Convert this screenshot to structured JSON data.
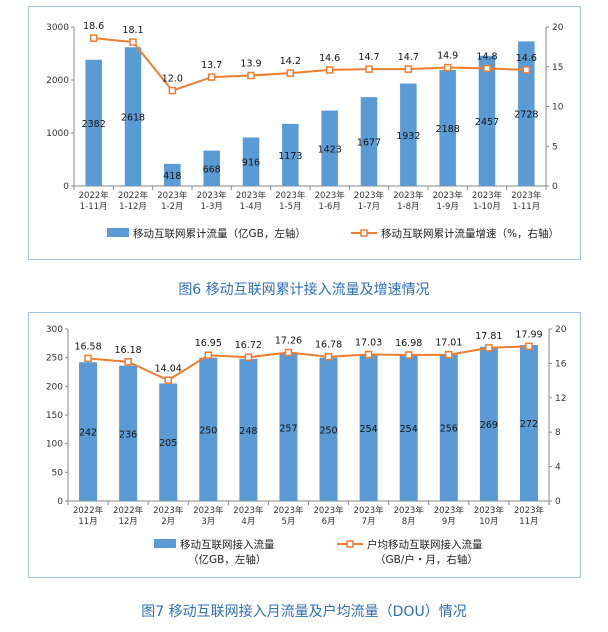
{
  "chart_data": [
    {
      "type": "bar",
      "categories": [
        [
          "2022年",
          "1-11月"
        ],
        [
          "2022年",
          "1-12月"
        ],
        [
          "2023年",
          "1-2月"
        ],
        [
          "2023年",
          "1-3月"
        ],
        [
          "2023年",
          "1-4月"
        ],
        [
          "2023年",
          "1-5月"
        ],
        [
          "2023年",
          "1-6月"
        ],
        [
          "2023年",
          "1-7月"
        ],
        [
          "2023年",
          "1-8月"
        ],
        [
          "2023年",
          "1-9月"
        ],
        [
          "2023年",
          "1-10月"
        ],
        [
          "2023年",
          "1-11月"
        ]
      ],
      "series": [
        {
          "name": "移动互联网累计流量（亿GB，左轴）",
          "kind": "bar",
          "axis": "left",
          "values": [
            2382,
            2618,
            418,
            668,
            916,
            1173,
            1423,
            1677,
            1932,
            2188,
            2457,
            2728
          ]
        },
        {
          "name": "移动互联网累计流量增速（%，右轴）",
          "kind": "line",
          "axis": "right",
          "values": [
            18.6,
            18.1,
            12.0,
            13.7,
            13.9,
            14.2,
            14.6,
            14.7,
            14.7,
            14.9,
            14.8,
            14.6
          ],
          "labels": [
            "18.6",
            "18.1",
            "12.0",
            "13.7",
            "13.9",
            "14.2",
            "14.6",
            "14.7",
            "14.7",
            "14.9",
            "14.8",
            "14.6"
          ]
        }
      ],
      "ylim_left": [
        0,
        3000
      ],
      "yticks_left": [
        0,
        1000,
        2000,
        3000
      ],
      "ylim_right": [
        0,
        20
      ],
      "yticks_right": [
        0,
        5,
        10,
        15,
        20
      ],
      "bar_color": "#5b9bd5",
      "line_color": "#ed7d31",
      "legend": "bottom"
    },
    {
      "type": "bar",
      "categories": [
        [
          "2022年",
          "11月"
        ],
        [
          "2022年",
          "12月"
        ],
        [
          "2023年",
          "2月"
        ],
        [
          "2023年",
          "3月"
        ],
        [
          "2023年",
          "4月"
        ],
        [
          "2023年",
          "5月"
        ],
        [
          "2023年",
          "6月"
        ],
        [
          "2023年",
          "7月"
        ],
        [
          "2023年",
          "8月"
        ],
        [
          "2023年",
          "9月"
        ],
        [
          "2023年",
          "10月"
        ],
        [
          "2023年",
          "11月"
        ]
      ],
      "series": [
        {
          "name": [
            "移动互联网接入流量",
            "（亿GB，左轴）"
          ],
          "kind": "bar",
          "axis": "left",
          "values": [
            242,
            236,
            205,
            250,
            248,
            257,
            250,
            254,
            254,
            256,
            269,
            272
          ]
        },
        {
          "name": [
            "户均移动互联网接入流量",
            "（GB/户・月，右轴）"
          ],
          "kind": "line",
          "axis": "right",
          "values": [
            16.58,
            16.18,
            14.04,
            16.95,
            16.72,
            17.26,
            16.78,
            17.03,
            16.98,
            17.01,
            17.81,
            17.99
          ],
          "labels": [
            "16.58",
            "16.18",
            "14.04",
            "16.95",
            "16.72",
            "17.26",
            "16.78",
            "17.03",
            "16.98",
            "17.01",
            "17.81",
            "17.99"
          ]
        }
      ],
      "ylim_left": [
        0,
        300
      ],
      "yticks_left": [
        0,
        50,
        100,
        150,
        200,
        250,
        300
      ],
      "ylim_right": [
        0,
        20
      ],
      "yticks_right": [
        0,
        4,
        8,
        12,
        16,
        20
      ],
      "bar_color": "#5b9bd5",
      "line_color": "#ed7d31",
      "legend": "bottom"
    }
  ],
  "captions": {
    "fig6": "图6 移动互联网累计接入流量及增速情况",
    "fig7": "图7 移动互联网接入月流量及户均流量（DOU）情况"
  }
}
